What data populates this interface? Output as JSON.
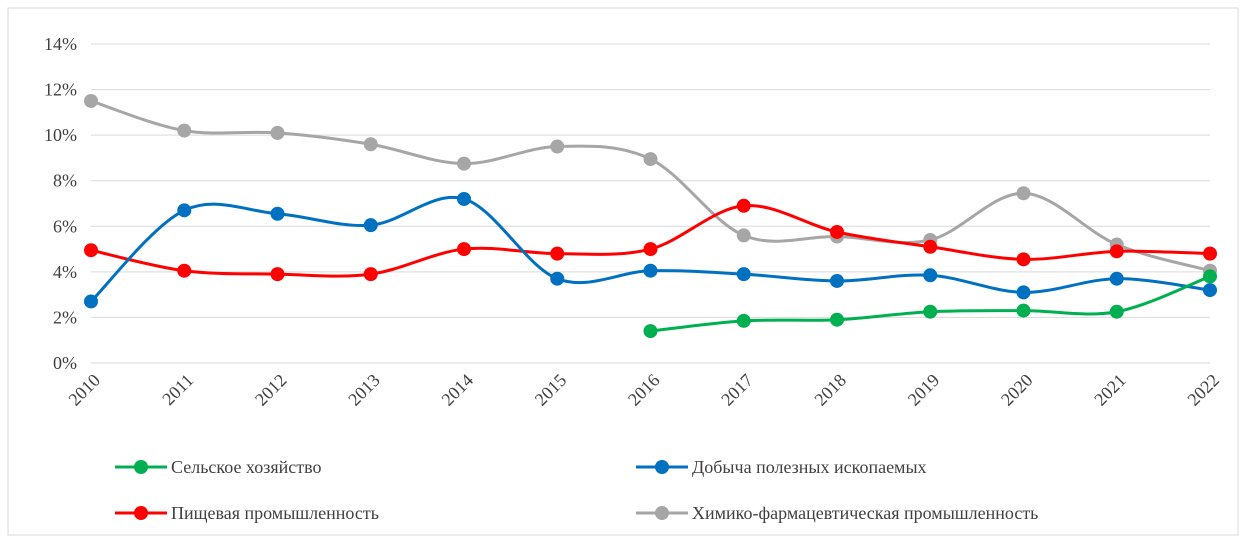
{
  "chart_data": {
    "type": "line",
    "categories": [
      "2010",
      "2011",
      "2012",
      "2013",
      "2014",
      "2015",
      "2016",
      "2017",
      "2018",
      "2019",
      "2020",
      "2021",
      "2022"
    ],
    "series": [
      {
        "name": "Сельское хозяйство",
        "color": "#00b050",
        "values": [
          null,
          null,
          null,
          null,
          null,
          null,
          1.4,
          1.85,
          1.9,
          2.25,
          2.3,
          2.25,
          3.8
        ]
      },
      {
        "name": "Добыча полезных ископаемых",
        "color": "#0070c0",
        "values": [
          2.7,
          6.7,
          6.55,
          6.05,
          7.2,
          3.7,
          4.05,
          3.9,
          3.6,
          3.85,
          3.1,
          3.7,
          3.2
        ]
      },
      {
        "name": "Пищевая промышленность",
        "color": "#ff0000",
        "values": [
          4.95,
          4.05,
          3.9,
          3.9,
          5.0,
          4.8,
          5.0,
          6.9,
          5.75,
          5.1,
          4.55,
          4.9,
          4.8
        ]
      },
      {
        "name": "Химико-фармацевтическая промышленность",
        "color": "#a6a6a6",
        "values": [
          11.5,
          10.2,
          10.1,
          9.6,
          8.75,
          9.5,
          8.95,
          5.6,
          5.55,
          5.4,
          7.45,
          5.2,
          4.05
        ]
      }
    ],
    "ylim": [
      0,
      14
    ],
    "yticks": [
      {
        "value": 0,
        "label": "0%"
      },
      {
        "value": 2,
        "label": "2%"
      },
      {
        "value": 4,
        "label": "4%"
      },
      {
        "value": 6,
        "label": "6%"
      },
      {
        "value": 8,
        "label": "8%"
      },
      {
        "value": 10,
        "label": "10%"
      },
      {
        "value": 12,
        "label": "12%"
      },
      {
        "value": 14,
        "label": "14%"
      }
    ],
    "grid": true,
    "legend": "bottom"
  }
}
